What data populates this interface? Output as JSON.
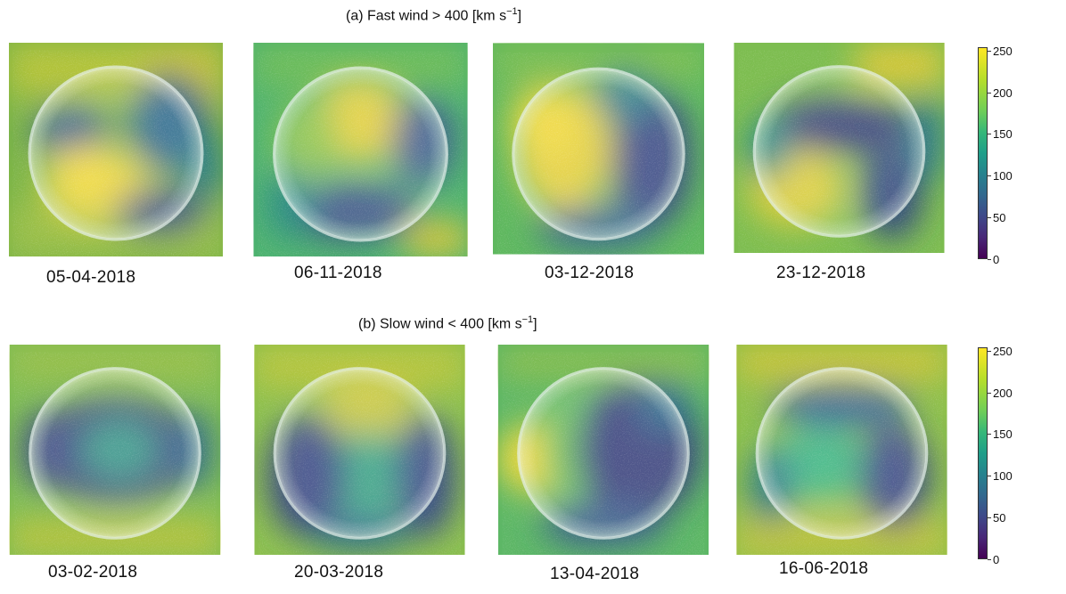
{
  "titles": {
    "top_prefix": "(a) Fast wind > 400 [km s",
    "top_exp": "−1",
    "top_suffix": "]",
    "bottom_prefix": "(b) Slow wind < 400 [km s",
    "bottom_exp": "−1",
    "bottom_suffix": "]"
  },
  "colorbar": {
    "ticks": [
      "250",
      "200",
      "150",
      "100",
      "50",
      "0"
    ],
    "range": [
      0,
      250
    ],
    "colormap": "viridis"
  },
  "panels_fast": [
    {
      "date": "05-04-2018",
      "bright_region": "center-left"
    },
    {
      "date": "06-11-2018",
      "bright_region": "top-center"
    },
    {
      "date": "03-12-2018",
      "bright_region": "left"
    },
    {
      "date": "23-12-2018",
      "bright_region": "bottom-left"
    }
  ],
  "panels_slow": [
    {
      "date": "03-02-2018",
      "bright_region": "center"
    },
    {
      "date": "20-03-2018",
      "bright_region": "top-center"
    },
    {
      "date": "13-04-2018",
      "bright_region": "left"
    },
    {
      "date": "16-06-2018",
      "bright_region": "center"
    }
  ],
  "colors": {
    "yellow": "#e3d43a",
    "green": "#5bb86a",
    "teal": "#2c8f8c",
    "blue": "#2f5b8c",
    "dark": "#3a2f6b"
  }
}
